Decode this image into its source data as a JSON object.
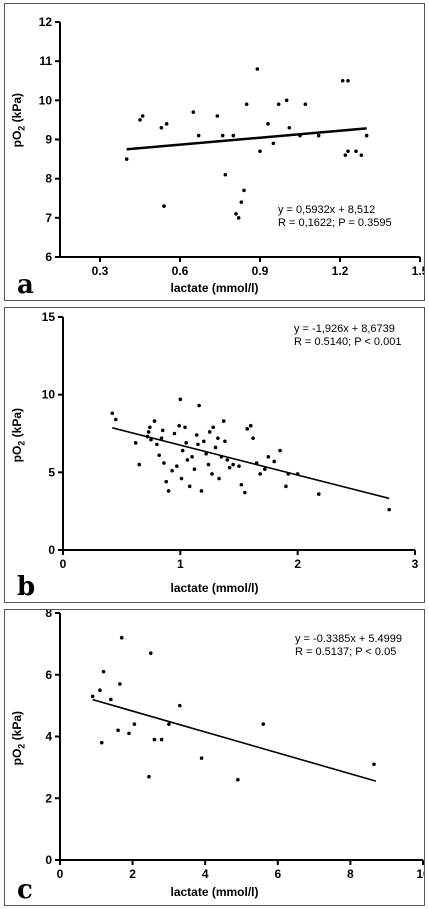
{
  "chart_data": [
    {
      "panel": "a",
      "type": "scatter",
      "xlabel": "lactate (mmol/l)",
      "ylabel_main": "pO",
      "ylabel_sub": "2",
      "ylabel_unit": "(kPa)",
      "equation": "y = 0,5932x + 8,512",
      "stats": "R = 0,1622; P = 0.3595",
      "xlim": [
        0.15,
        1.5
      ],
      "ylim": [
        6,
        12
      ],
      "xticks": [
        0.3,
        0.6,
        0.9,
        1.2,
        1.5
      ],
      "xtick_labels": [
        "0.3",
        "0.6",
        "0.9",
        "1.2",
        "1.5"
      ],
      "yticks": [
        6,
        7,
        8,
        9,
        10,
        11,
        12
      ],
      "ytick_labels": [
        "6",
        "7",
        "8",
        "9",
        "10",
        "11",
        "12"
      ],
      "fit": {
        "slope": 0.5932,
        "intercept": 8.512,
        "x_range": [
          0.4,
          1.3
        ]
      },
      "points": [
        [
          0.4,
          8.5
        ],
        [
          0.45,
          9.5
        ],
        [
          0.46,
          9.6
        ],
        [
          0.53,
          9.3
        ],
        [
          0.54,
          7.3
        ],
        [
          0.55,
          9.4
        ],
        [
          0.65,
          9.7
        ],
        [
          0.67,
          9.1
        ],
        [
          0.74,
          9.6
        ],
        [
          0.76,
          9.1
        ],
        [
          0.77,
          8.1
        ],
        [
          0.8,
          9.1
        ],
        [
          0.81,
          7.1
        ],
        [
          0.82,
          7.0
        ],
        [
          0.83,
          7.4
        ],
        [
          0.84,
          7.7
        ],
        [
          0.85,
          9.9
        ],
        [
          0.89,
          10.8
        ],
        [
          0.9,
          8.7
        ],
        [
          0.93,
          9.4
        ],
        [
          0.95,
          8.9
        ],
        [
          0.97,
          9.9
        ],
        [
          1.0,
          10.0
        ],
        [
          1.01,
          9.3
        ],
        [
          1.05,
          9.1
        ],
        [
          1.07,
          9.9
        ],
        [
          1.12,
          9.1
        ],
        [
          1.21,
          10.5
        ],
        [
          1.23,
          10.5
        ],
        [
          1.22,
          8.6
        ],
        [
          1.23,
          8.7
        ],
        [
          1.26,
          8.7
        ],
        [
          1.28,
          8.6
        ],
        [
          1.3,
          9.1
        ]
      ]
    },
    {
      "panel": "b",
      "type": "scatter",
      "xlabel": "lactate (mmol/l)",
      "ylabel_main": "pO",
      "ylabel_sub": "2",
      "ylabel_unit": "(kPa)",
      "equation": "y = -1,926x + 8,6739",
      "stats": "R = 0.5140; P < 0.001",
      "xlim": [
        0,
        3
      ],
      "ylim": [
        0,
        15
      ],
      "xticks": [
        0,
        1,
        2,
        3
      ],
      "xtick_labels": [
        "0",
        "1",
        "2",
        "3"
      ],
      "yticks": [
        0,
        5,
        10,
        15
      ],
      "ytick_labels": [
        "0",
        "5",
        "10",
        "15"
      ],
      "fit": {
        "slope": -1.926,
        "intercept": 8.6739,
        "x_range": [
          0.42,
          2.78
        ]
      },
      "points": [
        [
          0.42,
          8.8
        ],
        [
          0.45,
          8.4
        ],
        [
          0.62,
          6.9
        ],
        [
          0.65,
          5.5
        ],
        [
          0.72,
          7.3
        ],
        [
          0.73,
          7.6
        ],
        [
          0.74,
          7.9
        ],
        [
          0.75,
          7.1
        ],
        [
          0.78,
          8.3
        ],
        [
          0.8,
          6.8
        ],
        [
          0.82,
          6.1
        ],
        [
          0.84,
          7.2
        ],
        [
          0.85,
          7.7
        ],
        [
          0.86,
          5.6
        ],
        [
          0.88,
          4.4
        ],
        [
          0.9,
          3.8
        ],
        [
          0.93,
          5.1
        ],
        [
          0.95,
          7.5
        ],
        [
          0.97,
          5.4
        ],
        [
          0.99,
          8.0
        ],
        [
          1.0,
          9.7
        ],
        [
          1.01,
          4.6
        ],
        [
          1.02,
          6.4
        ],
        [
          1.04,
          7.9
        ],
        [
          1.05,
          6.9
        ],
        [
          1.06,
          5.8
        ],
        [
          1.08,
          4.1
        ],
        [
          1.1,
          6.0
        ],
        [
          1.12,
          5.2
        ],
        [
          1.14,
          7.4
        ],
        [
          1.15,
          6.8
        ],
        [
          1.16,
          9.3
        ],
        [
          1.18,
          3.8
        ],
        [
          1.2,
          7.0
        ],
        [
          1.22,
          6.2
        ],
        [
          1.24,
          5.5
        ],
        [
          1.25,
          7.6
        ],
        [
          1.27,
          4.9
        ],
        [
          1.28,
          7.9
        ],
        [
          1.3,
          6.6
        ],
        [
          1.32,
          7.2
        ],
        [
          1.33,
          4.6
        ],
        [
          1.35,
          6.0
        ],
        [
          1.37,
          8.3
        ],
        [
          1.38,
          7.0
        ],
        [
          1.4,
          5.8
        ],
        [
          1.42,
          5.3
        ],
        [
          1.45,
          5.5
        ],
        [
          1.5,
          5.4
        ],
        [
          1.52,
          4.2
        ],
        [
          1.55,
          3.7
        ],
        [
          1.57,
          7.8
        ],
        [
          1.6,
          8.0
        ],
        [
          1.62,
          7.2
        ],
        [
          1.65,
          5.6
        ],
        [
          1.68,
          4.9
        ],
        [
          1.72,
          5.2
        ],
        [
          1.75,
          6.0
        ],
        [
          1.8,
          5.7
        ],
        [
          1.85,
          6.4
        ],
        [
          1.9,
          4.1
        ],
        [
          1.92,
          4.9
        ],
        [
          2.0,
          4.9
        ],
        [
          2.18,
          3.6
        ],
        [
          2.78,
          2.6
        ]
      ]
    },
    {
      "panel": "c",
      "type": "scatter",
      "xlabel": "lactate (mmol/l)",
      "ylabel_main": "pO",
      "ylabel_sub": "2",
      "ylabel_unit": "(kPa)",
      "equation": "y = -0.3385x + 5.4999",
      "stats": "R = 0.5137;  P < 0.05",
      "xlim": [
        0,
        10
      ],
      "ylim": [
        0,
        8
      ],
      "xticks": [
        0,
        2,
        4,
        6,
        8,
        10
      ],
      "xtick_labels": [
        "0",
        "2",
        "4",
        "6",
        "8",
        "10"
      ],
      "yticks": [
        0,
        2,
        4,
        6,
        8
      ],
      "ytick_labels": [
        "0",
        "2",
        "4",
        "6",
        "8"
      ],
      "fit": {
        "slope": -0.3385,
        "intercept": 5.4999,
        "x_range": [
          0.9,
          8.7
        ]
      },
      "points": [
        [
          0.9,
          5.3
        ],
        [
          1.1,
          5.5
        ],
        [
          1.15,
          3.8
        ],
        [
          1.2,
          6.1
        ],
        [
          1.4,
          5.2
        ],
        [
          1.6,
          4.2
        ],
        [
          1.65,
          5.7
        ],
        [
          1.7,
          7.2
        ],
        [
          1.9,
          4.1
        ],
        [
          2.05,
          4.4
        ],
        [
          2.45,
          2.7
        ],
        [
          2.5,
          6.7
        ],
        [
          2.6,
          3.9
        ],
        [
          2.8,
          3.9
        ],
        [
          3.0,
          4.4
        ],
        [
          3.3,
          5.0
        ],
        [
          3.9,
          3.3
        ],
        [
          4.9,
          2.6
        ],
        [
          5.6,
          4.4
        ],
        [
          8.65,
          3.1
        ]
      ]
    }
  ],
  "panel_letters": [
    "a",
    "b",
    "c"
  ]
}
